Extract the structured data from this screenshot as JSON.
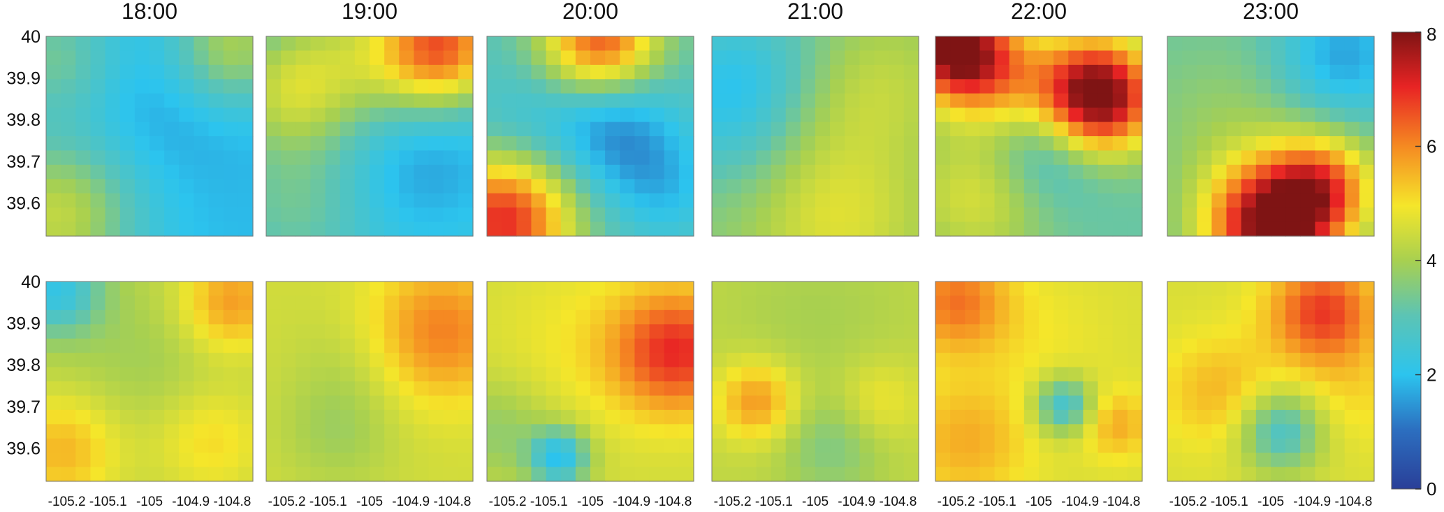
{
  "chart_data": {
    "type": "heatmap",
    "columns": [
      "18:00",
      "19:00",
      "20:00",
      "21:00",
      "22:00",
      "23:00"
    ],
    "rows": 2,
    "grid_size": [
      14,
      14
    ],
    "y_ticks": [
      "40",
      "39.9",
      "39.8",
      "39.7",
      "39.6"
    ],
    "x_ticks": [
      "-105.2",
      "-105.1",
      "-105",
      "-104.9",
      "-104.8"
    ],
    "x_range": [
      -105.25,
      -104.75
    ],
    "y_range": [
      39.52,
      40.0
    ],
    "colorbar": {
      "min": 0,
      "max": 8,
      "ticks": [
        "0",
        "2",
        "4",
        "6",
        "8"
      ],
      "colormap": "jet"
    },
    "colors": {
      "low": "#1f3f99",
      "high": "#7f1414"
    },
    "fields": [
      [
        {
          "base": 1.9,
          "features": [
            [
              0.05,
              0.9,
              2.4,
              0.28
            ],
            [
              0.9,
              0.05,
              2.2,
              0.22
            ],
            [
              0.05,
              0.1,
              1.4,
              0.22
            ],
            [
              0.6,
              0.3,
              -0.4,
              0.3
            ]
          ]
        },
        {
          "base": 2.4,
          "features": [
            [
              0.85,
              0.05,
              4.0,
              0.22
            ],
            [
              0.35,
              0.15,
              1.6,
              0.28
            ],
            [
              0.08,
              0.3,
              1.2,
              0.2
            ],
            [
              0.15,
              0.85,
              0.9,
              0.25
            ],
            [
              0.75,
              0.6,
              -0.9,
              0.28
            ]
          ]
        },
        {
          "base": 3.0,
          "features": [
            [
              0.08,
              0.92,
              4.0,
              0.24
            ],
            [
              0.55,
              0.02,
              3.6,
              0.2
            ],
            [
              0.6,
              0.45,
              -1.6,
              0.22
            ],
            [
              0.85,
              0.75,
              -1.0,
              0.2
            ],
            [
              0.15,
              0.45,
              -0.6,
              0.2
            ]
          ]
        },
        {
          "base": 3.6,
          "features": [
            [
              0.15,
              0.3,
              -1.9,
              0.3
            ],
            [
              0.6,
              0.9,
              1.1,
              0.3
            ],
            [
              0.8,
              0.25,
              0.7,
              0.25
            ],
            [
              0.4,
              0.4,
              0.6,
              0.25
            ]
          ]
        },
        {
          "base": 3.2,
          "features": [
            [
              0.78,
              0.3,
              5.5,
              0.2
            ],
            [
              0.08,
              0.05,
              4.5,
              0.18
            ],
            [
              0.3,
              0.2,
              2.0,
              0.2
            ],
            [
              0.2,
              0.8,
              1.4,
              0.25
            ],
            [
              0.55,
              0.55,
              -1.3,
              0.2
            ]
          ]
        },
        {
          "base": 3.2,
          "features": [
            [
              0.5,
              0.95,
              4.8,
              0.22
            ],
            [
              0.75,
              0.75,
              2.8,
              0.18
            ],
            [
              0.85,
              0.1,
              -1.6,
              0.22
            ],
            [
              0.3,
              0.45,
              0.6,
              0.3
            ]
          ]
        }
      ],
      [
        {
          "base": 4.2,
          "features": [
            [
              0.05,
              0.05,
              -2.0,
              0.15
            ],
            [
              0.9,
              0.1,
              1.6,
              0.18
            ],
            [
              0.08,
              0.85,
              1.3,
              0.2
            ],
            [
              0.8,
              0.8,
              0.9,
              0.2
            ],
            [
              0.5,
              0.4,
              -0.3,
              0.25
            ]
          ]
        },
        {
          "base": 4.5,
          "features": [
            [
              0.85,
              0.25,
              1.6,
              0.25
            ],
            [
              0.35,
              0.75,
              -0.6,
              0.2
            ],
            [
              0.4,
              0.4,
              -0.3,
              0.2
            ]
          ]
        },
        {
          "base": 4.5,
          "features": [
            [
              0.92,
              0.35,
              2.4,
              0.22
            ],
            [
              0.35,
              0.88,
              -2.5,
              0.1
            ],
            [
              0.05,
              0.75,
              -0.8,
              0.18
            ],
            [
              0.45,
              0.3,
              0.4,
              0.3
            ]
          ]
        },
        {
          "base": 4.3,
          "features": [
            [
              0.22,
              0.6,
              1.6,
              0.14
            ],
            [
              0.58,
              0.82,
              -0.8,
              0.18
            ],
            [
              0.8,
              0.6,
              0.7,
              0.15
            ],
            [
              0.5,
              0.2,
              -0.3,
              0.3
            ]
          ]
        },
        {
          "base": 4.6,
          "features": [
            [
              0.1,
              0.1,
              1.6,
              0.18
            ],
            [
              0.62,
              0.62,
              -2.2,
              0.1
            ],
            [
              0.15,
              0.8,
              1.0,
              0.22
            ],
            [
              0.88,
              0.72,
              1.0,
              0.12
            ],
            [
              0.5,
              0.3,
              0.3,
              0.25
            ]
          ]
        },
        {
          "base": 4.6,
          "features": [
            [
              0.75,
              0.15,
              2.2,
              0.18
            ],
            [
              0.55,
              0.75,
              -2.0,
              0.14
            ],
            [
              0.25,
              0.55,
              0.9,
              0.2
            ],
            [
              0.9,
              0.55,
              0.5,
              0.2
            ]
          ]
        }
      ]
    ]
  }
}
